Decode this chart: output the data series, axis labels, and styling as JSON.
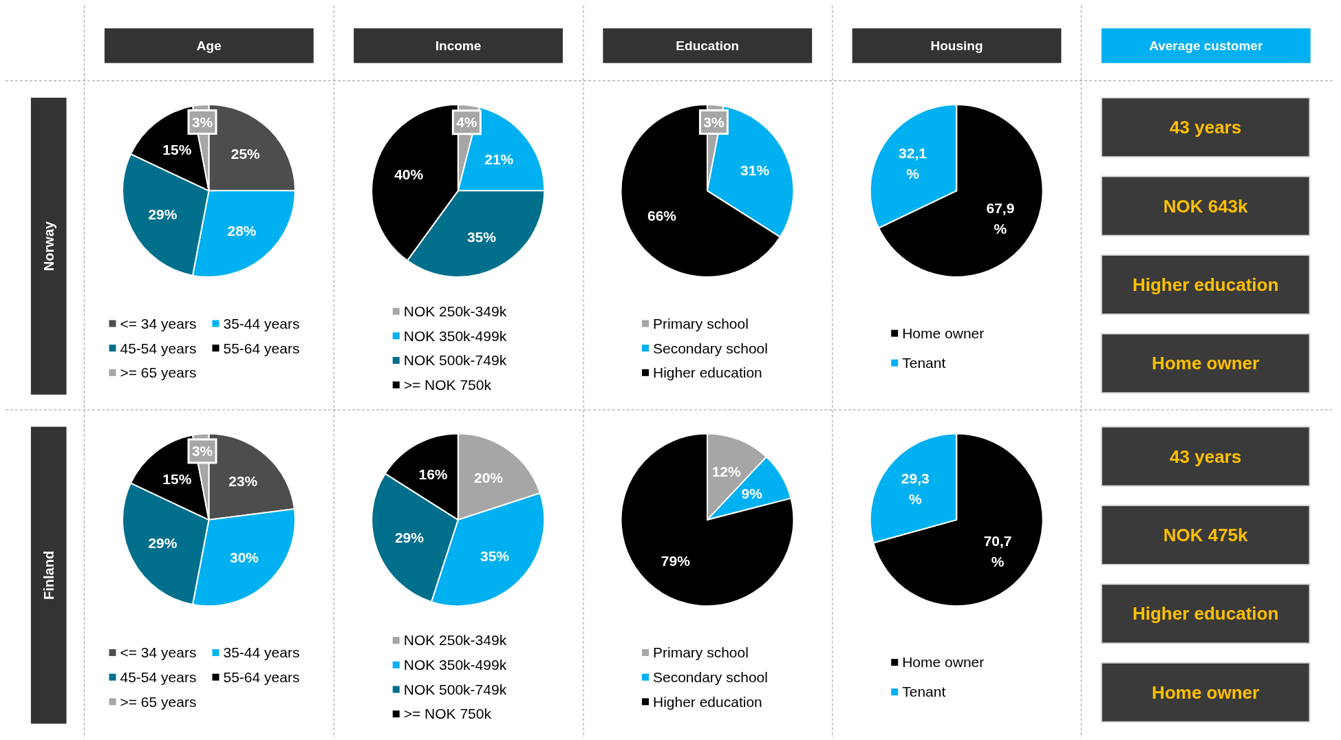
{
  "chart_data": [
    {
      "type": "pie",
      "title": "Age",
      "ylabel": "Norway",
      "categories": [
        "<= 34 years",
        "35-44 years",
        "45-54 years",
        "55-64 years",
        ">= 65 years"
      ],
      "values": [
        25,
        28,
        29,
        15,
        3
      ],
      "value_labels": [
        "25%",
        "28%",
        "29%",
        "15%",
        "3%"
      ],
      "colors": [
        "#4d4d4d",
        "#00b0f0",
        "#006f8c",
        "#000000",
        "#a6a6a6"
      ],
      "legend": "bottom"
    },
    {
      "type": "pie",
      "title": "Income",
      "categories": [
        "NOK 250k-349k",
        "NOK 350k-499k",
        "NOK 500k-749k",
        ">= NOK 750k"
      ],
      "values": [
        4,
        21,
        35,
        40
      ],
      "value_labels": [
        "4%",
        "21%",
        "35%",
        "40%"
      ],
      "colors": [
        "#a6a6a6",
        "#00b0f0",
        "#006f8c",
        "#000000"
      ],
      "legend": "bottom"
    },
    {
      "type": "pie",
      "title": "Education",
      "categories": [
        "Primary school",
        "Secondary school",
        "Higher education"
      ],
      "values": [
        3,
        31,
        66
      ],
      "value_labels": [
        "3%",
        "31%",
        "66%"
      ],
      "colors": [
        "#a6a6a6",
        "#00b0f0",
        "#000000"
      ],
      "legend": "bottom"
    },
    {
      "type": "pie",
      "title": "Housing",
      "categories": [
        "Home owner",
        "Tenant"
      ],
      "values": [
        67.9,
        32.1
      ],
      "value_labels": [
        "67,9 %",
        "32,1 %"
      ],
      "colors": [
        "#000000",
        "#00b0f0"
      ],
      "legend": "bottom"
    },
    {
      "type": "other",
      "title": "Average customer",
      "annotations": [
        "43 years",
        "NOK 643k",
        "Higher education",
        "Home owner"
      ]
    },
    {
      "type": "pie",
      "ylabel": "Finland",
      "categories": [
        "<= 34 years",
        "35-44 years",
        "45-54 years",
        "55-64 years",
        ">= 65 years"
      ],
      "values": [
        23,
        30,
        29,
        15,
        3
      ],
      "value_labels": [
        "23%",
        "30%",
        "29%",
        "15%",
        "3%"
      ],
      "colors": [
        "#4d4d4d",
        "#00b0f0",
        "#006f8c",
        "#000000",
        "#a6a6a6"
      ],
      "legend": "bottom"
    },
    {
      "type": "pie",
      "categories": [
        "NOK 250k-349k",
        "NOK 350k-499k",
        "NOK 500k-749k",
        ">= NOK 750k"
      ],
      "values": [
        20,
        35,
        29,
        16
      ],
      "value_labels": [
        "20%",
        "35%",
        "29%",
        "16%"
      ],
      "colors": [
        "#a6a6a6",
        "#00b0f0",
        "#006f8c",
        "#000000"
      ],
      "legend": "bottom"
    },
    {
      "type": "pie",
      "categories": [
        "Primary school",
        "Secondary school",
        "Higher education"
      ],
      "values": [
        12,
        9,
        79
      ],
      "value_labels": [
        "12%",
        "9%",
        "79%"
      ],
      "colors": [
        "#a6a6a6",
        "#00b0f0",
        "#000000"
      ],
      "legend": "bottom"
    },
    {
      "type": "pie",
      "categories": [
        "Home owner",
        "Tenant"
      ],
      "values": [
        70.7,
        29.3
      ],
      "value_labels": [
        "70,7 %",
        "29,3 %"
      ],
      "colors": [
        "#000000",
        "#00b0f0"
      ],
      "legend": "bottom"
    },
    {
      "type": "other",
      "annotations": [
        "43 years",
        "NOK 475k",
        "Higher education",
        "Home owner"
      ]
    }
  ]
}
